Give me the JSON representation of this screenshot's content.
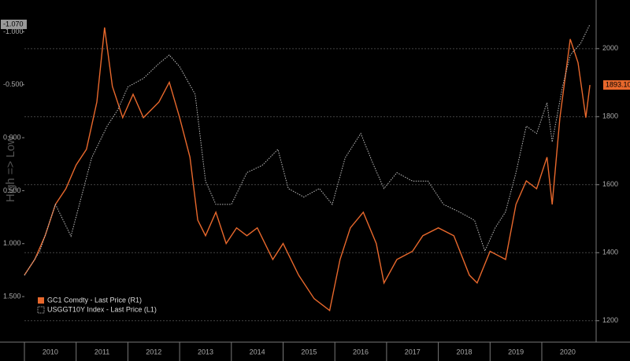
{
  "chart_data": {
    "type": "line",
    "ylabel": "High => Low",
    "xlim": [
      2010.0,
      2021.05
    ],
    "xticks": [
      2010,
      2011,
      2012,
      2013,
      2014,
      2015,
      2016,
      2017,
      2018,
      2019,
      2020
    ],
    "ylim": [
      1.93,
      -1.3
    ],
    "yticks": [
      {
        "value": -1.0,
        "label": "-1.000"
      },
      {
        "value": -0.5,
        "label": "-0.500"
      },
      {
        "value": 0.0,
        "label": "0.000"
      },
      {
        "value": 0.5,
        "label": "0.500"
      },
      {
        "value": 1.0,
        "label": "1.000"
      },
      {
        "value": 1.5,
        "label": "1.500"
      }
    ],
    "y2lim": [
      1137,
      2143
    ],
    "y2ticks": [
      1200,
      1400,
      1600,
      1800,
      2000
    ],
    "grid": true,
    "legend": "lower left",
    "series": [
      {
        "name": "GC1 Comdty - Last Price (R1)",
        "color": "#e8682c",
        "axis": "y2",
        "style": "solid",
        "last_label": "1893.10",
        "x": [
          2010.0,
          2010.2,
          2010.4,
          2010.6,
          2010.8,
          2011.0,
          2011.2,
          2011.4,
          2011.55,
          2011.7,
          2011.9,
          2012.1,
          2012.3,
          2012.6,
          2012.8,
          2013.0,
          2013.2,
          2013.35,
          2013.5,
          2013.7,
          2013.9,
          2014.1,
          2014.3,
          2014.5,
          2014.8,
          2015.0,
          2015.3,
          2015.6,
          2015.9,
          2016.1,
          2016.3,
          2016.55,
          2016.8,
          2016.95,
          2017.2,
          2017.5,
          2017.7,
          2018.0,
          2018.3,
          2018.6,
          2018.75,
          2019.0,
          2019.3,
          2019.5,
          2019.7,
          2019.9,
          2020.1,
          2020.2,
          2020.35,
          2020.55,
          2020.7,
          2020.85,
          2020.93
        ],
        "values": [
          1334,
          1380,
          1450,
          1542,
          1588,
          1658,
          1704,
          1843,
          2062,
          1889,
          1797,
          1866,
          1797,
          1843,
          1901,
          1797,
          1681,
          1496,
          1450,
          1519,
          1427,
          1473,
          1450,
          1473,
          1380,
          1427,
          1334,
          1265,
          1230,
          1380,
          1473,
          1519,
          1427,
          1311,
          1380,
          1404,
          1450,
          1473,
          1450,
          1334,
          1311,
          1404,
          1380,
          1542,
          1611,
          1588,
          1681,
          1542,
          1797,
          2028,
          1959,
          1797,
          1893.1
        ]
      },
      {
        "name": "USGGT10Y Index - Last Price (L1)",
        "color": "#bbbbbb",
        "axis": "y",
        "style": "dotted",
        "last_label": "-1.070",
        "x": [
          2010.0,
          2010.3,
          2010.6,
          2010.9,
          2011.1,
          2011.3,
          2011.6,
          2011.8,
          2012.0,
          2012.3,
          2012.6,
          2012.8,
          2013.0,
          2013.3,
          2013.5,
          2013.7,
          2014.0,
          2014.3,
          2014.6,
          2014.9,
          2015.1,
          2015.4,
          2015.7,
          2015.95,
          2016.2,
          2016.5,
          2016.75,
          2016.95,
          2017.2,
          2017.5,
          2017.8,
          2018.1,
          2018.4,
          2018.7,
          2018.9,
          2019.1,
          2019.3,
          2019.5,
          2019.7,
          2019.9,
          2020.1,
          2020.2,
          2020.4,
          2020.55,
          2020.75,
          2020.93
        ],
        "values": [
          1.3,
          1.07,
          0.63,
          0.93,
          0.56,
          0.19,
          -0.11,
          -0.26,
          -0.48,
          -0.56,
          -0.7,
          -0.78,
          -0.67,
          -0.41,
          0.41,
          0.63,
          0.63,
          0.33,
          0.26,
          0.11,
          0.48,
          0.56,
          0.48,
          0.63,
          0.19,
          -0.04,
          0.26,
          0.48,
          0.33,
          0.41,
          0.41,
          0.63,
          0.7,
          0.78,
          1.07,
          0.85,
          0.7,
          0.33,
          -0.11,
          -0.04,
          -0.33,
          0.04,
          -0.48,
          -0.78,
          -0.89,
          -1.07
        ]
      }
    ]
  }
}
